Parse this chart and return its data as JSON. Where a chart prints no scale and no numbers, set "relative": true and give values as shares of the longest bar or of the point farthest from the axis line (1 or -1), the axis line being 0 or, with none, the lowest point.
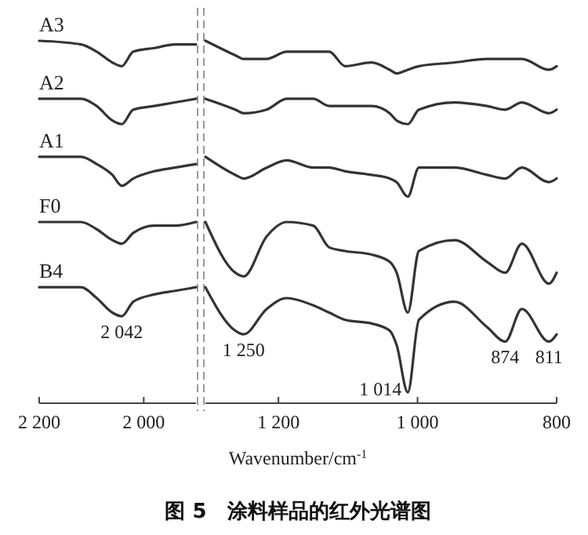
{
  "chart_data": [
    {
      "type": "line",
      "relative": true,
      "xlim": [
        2200,
        1900
      ],
      "xticks": [
        {
          "value": 2200,
          "label": "2 200"
        },
        {
          "value": 2000,
          "label": "2 000"
        }
      ],
      "x": [
        2200,
        2120,
        2090,
        2060,
        2042,
        2020,
        1980,
        1940,
        1900
      ],
      "grid": false,
      "legend": false,
      "marker": "none",
      "line_style": "solid",
      "series": [
        {
          "name": "A3",
          "color": "#333333",
          "values": [
            1.0,
            0.99,
            0.97,
            0.94,
            0.93,
            0.97,
            0.98,
            0.99,
            0.99
          ]
        },
        {
          "name": "A2",
          "color": "#333333",
          "values": [
            0.84,
            0.84,
            0.82,
            0.78,
            0.77,
            0.81,
            0.82,
            0.83,
            0.84
          ]
        },
        {
          "name": "A1",
          "color": "#333333",
          "values": [
            0.68,
            0.68,
            0.66,
            0.63,
            0.6,
            0.62,
            0.64,
            0.65,
            0.66
          ]
        },
        {
          "name": "F0",
          "color": "#333333",
          "values": [
            0.5,
            0.5,
            0.48,
            0.45,
            0.44,
            0.47,
            0.49,
            0.49,
            0.5
          ]
        },
        {
          "name": "B4",
          "color": "#333333",
          "values": [
            0.32,
            0.32,
            0.29,
            0.25,
            0.24,
            0.28,
            0.3,
            0.31,
            0.32
          ]
        }
      ],
      "annotations": [
        {
          "text": "2 042",
          "x": 2042,
          "y": 0.24
        }
      ]
    },
    {
      "type": "line",
      "title": "图 5　涂料样品的红外光谱图",
      "xlabel": "Wavenumber/cm$^{-1}$",
      "relative": true,
      "xlim": [
        1305,
        800
      ],
      "xticks": [
        {
          "value": 1200,
          "label": "1 200"
        },
        {
          "value": 1000,
          "label": "1 000"
        },
        800
      ],
      "x": [
        1305,
        1262,
        1250,
        1217,
        1188,
        1150,
        1127,
        1104,
        1066,
        1040,
        1030,
        1014,
        998,
        947,
        900,
        874,
        850,
        811,
        800
      ],
      "grid": false,
      "legend": false,
      "marker": "none",
      "line_style": "solid",
      "series": [
        {
          "color": "#333333",
          "values": [
            1.0,
            0.96,
            0.95,
            0.95,
            0.97,
            0.97,
            0.97,
            0.93,
            0.94,
            0.92,
            0.91,
            0.92,
            0.93,
            0.94,
            0.95,
            0.95,
            0.95,
            0.92,
            0.93
          ]
        },
        {
          "color": "#333333",
          "values": [
            0.84,
            0.81,
            0.8,
            0.81,
            0.84,
            0.84,
            0.82,
            0.82,
            0.82,
            0.8,
            0.78,
            0.77,
            0.81,
            0.83,
            0.82,
            0.81,
            0.83,
            0.8,
            0.81
          ]
        },
        {
          "color": "#333333",
          "values": [
            0.68,
            0.63,
            0.62,
            0.65,
            0.67,
            0.65,
            0.65,
            0.64,
            0.63,
            0.62,
            0.61,
            0.57,
            0.65,
            0.65,
            0.63,
            0.62,
            0.65,
            0.61,
            0.62
          ]
        },
        {
          "color": "#333333",
          "values": [
            0.5,
            0.36,
            0.35,
            0.46,
            0.5,
            0.49,
            0.43,
            0.42,
            0.41,
            0.39,
            0.36,
            0.25,
            0.42,
            0.45,
            0.39,
            0.36,
            0.44,
            0.33,
            0.36
          ]
        },
        {
          "color": "#333333",
          "values": [
            0.32,
            0.2,
            0.19,
            0.26,
            0.29,
            0.27,
            0.25,
            0.23,
            0.22,
            0.2,
            0.16,
            0.03,
            0.23,
            0.28,
            0.21,
            0.17,
            0.26,
            0.17,
            0.19
          ]
        }
      ],
      "annotations": [
        {
          "text": "1 250",
          "x": 1250,
          "y": 0.19
        },
        {
          "text": "1 014",
          "x": 1014,
          "y": 0.03
        },
        {
          "text": "874",
          "x": 874,
          "y": 0.17
        },
        {
          "text": "811",
          "x": 811,
          "y": 0.17
        }
      ]
    }
  ]
}
